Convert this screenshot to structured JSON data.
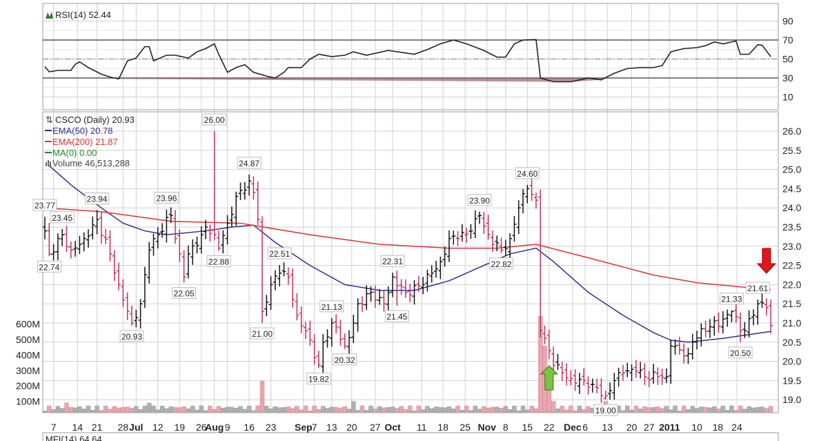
{
  "chart_data": {
    "type": "line",
    "symbol_title": "CSCO (Daily) 20.93",
    "rsi": {
      "label": "RSI(14) 52.44",
      "axis_ticks": [
        90,
        70,
        50,
        30,
        10
      ],
      "overbought": 70,
      "oversold": 30,
      "midline": 50,
      "points": [
        [
          0,
          42
        ],
        [
          1,
          36.5
        ],
        [
          3,
          38
        ],
        [
          6,
          38
        ],
        [
          7,
          44.5
        ],
        [
          8,
          47
        ],
        [
          10,
          41
        ],
        [
          13,
          34
        ],
        [
          15,
          31
        ],
        [
          17,
          29
        ],
        [
          19,
          48
        ],
        [
          21,
          51
        ],
        [
          23,
          63
        ],
        [
          24,
          63
        ],
        [
          25,
          48
        ],
        [
          26,
          50
        ],
        [
          28,
          54
        ],
        [
          30,
          54
        ],
        [
          33,
          51
        ],
        [
          35,
          57.6
        ],
        [
          37,
          61
        ],
        [
          39,
          66
        ],
        [
          40,
          55
        ],
        [
          42,
          36
        ],
        [
          44,
          41
        ],
        [
          46,
          44
        ],
        [
          48,
          36
        ],
        [
          51,
          32
        ],
        [
          53,
          30
        ],
        [
          55,
          36
        ],
        [
          56,
          41
        ],
        [
          59,
          41
        ],
        [
          61,
          50
        ],
        [
          63,
          55
        ],
        [
          66,
          52.5
        ],
        [
          69,
          54
        ],
        [
          71,
          57.6
        ],
        [
          74,
          54
        ],
        [
          79,
          59
        ],
        [
          85,
          55
        ],
        [
          88,
          60
        ],
        [
          91,
          66
        ],
        [
          94,
          70
        ],
        [
          97,
          66
        ],
        [
          101,
          59
        ],
        [
          104,
          52
        ],
        [
          106,
          52
        ],
        [
          108,
          66
        ],
        [
          110,
          70
        ],
        [
          113,
          70.5
        ],
        [
          114,
          30
        ],
        [
          117,
          26
        ],
        [
          121,
          26
        ],
        [
          125,
          30
        ],
        [
          128,
          28
        ],
        [
          131,
          35
        ],
        [
          134,
          40
        ],
        [
          137,
          41
        ],
        [
          140,
          41
        ],
        [
          142,
          43
        ],
        [
          144,
          57.6
        ],
        [
          147,
          61
        ],
        [
          150,
          62
        ],
        [
          152,
          64
        ],
        [
          154,
          68
        ],
        [
          156,
          66
        ],
        [
          159,
          69
        ],
        [
          160,
          55
        ],
        [
          162,
          55
        ],
        [
          164,
          65
        ],
        [
          165,
          64.5
        ],
        [
          167,
          52.4
        ]
      ]
    },
    "price": {
      "axis_ticks": [
        26.0,
        25.5,
        25.0,
        24.5,
        24.0,
        23.5,
        23.0,
        22.5,
        22.0,
        21.5,
        21.0,
        20.5,
        20.0,
        19.5,
        19.0
      ],
      "ylim": [
        18.7,
        26.2
      ],
      "closes": [
        [
          0,
          23.4
        ],
        [
          1,
          22.8
        ],
        [
          4,
          23.3
        ],
        [
          6,
          22.9
        ],
        [
          9,
          23.2
        ],
        [
          12,
          23.7
        ],
        [
          15,
          22.8
        ],
        [
          17,
          22.0
        ],
        [
          20,
          21.0
        ],
        [
          22,
          21.5
        ],
        [
          24,
          22.9
        ],
        [
          26,
          23.3
        ],
        [
          29,
          23.8
        ],
        [
          30,
          23.2
        ],
        [
          32,
          22.2
        ],
        [
          33,
          22.8
        ],
        [
          36,
          23.3
        ],
        [
          37,
          23.5
        ],
        [
          39,
          23.3
        ],
        [
          40,
          22.95
        ],
        [
          42,
          23.6
        ],
        [
          44,
          24.3
        ],
        [
          47,
          24.7
        ],
        [
          48,
          24.4
        ],
        [
          49,
          23.7
        ],
        [
          50,
          21.3
        ],
        [
          52,
          22.0
        ],
        [
          54,
          22.3
        ],
        [
          56,
          22.2
        ],
        [
          58,
          21.2
        ],
        [
          60,
          20.8
        ],
        [
          62,
          20.1
        ],
        [
          63,
          19.9
        ],
        [
          64,
          20.5
        ],
        [
          66,
          21.0
        ],
        [
          67,
          20.9
        ],
        [
          69,
          20.4
        ],
        [
          71,
          21.0
        ],
        [
          72,
          21.5
        ],
        [
          75,
          21.8
        ],
        [
          76,
          21.6
        ],
        [
          78,
          21.5
        ],
        [
          80,
          22.2
        ],
        [
          83,
          21.8
        ],
        [
          87,
          22.0
        ],
        [
          89,
          22.3
        ],
        [
          91,
          22.6
        ],
        [
          93,
          23.2
        ],
        [
          95,
          23.2
        ],
        [
          98,
          23.4
        ],
        [
          100,
          23.8
        ],
        [
          102,
          23.3
        ],
        [
          105,
          22.9
        ],
        [
          107,
          23.2
        ],
        [
          109,
          24.0
        ],
        [
          111,
          24.5
        ],
        [
          113,
          24.2
        ],
        [
          114,
          20.8
        ],
        [
          115,
          20.6
        ],
        [
          117,
          19.9
        ],
        [
          119,
          19.7
        ],
        [
          121,
          19.55
        ],
        [
          124,
          19.5
        ],
        [
          126,
          19.4
        ],
        [
          129,
          19.1
        ],
        [
          131,
          19.5
        ],
        [
          133,
          19.7
        ],
        [
          136,
          19.75
        ],
        [
          138,
          19.6
        ],
        [
          141,
          19.6
        ],
        [
          143,
          19.6
        ],
        [
          144,
          20.4
        ],
        [
          146,
          20.3
        ],
        [
          148,
          20.2
        ],
        [
          149,
          20.5
        ],
        [
          151,
          20.85
        ],
        [
          153,
          20.9
        ],
        [
          156,
          21.1
        ],
        [
          158,
          21.3
        ],
        [
          160,
          20.8
        ],
        [
          161,
          20.8
        ],
        [
          163,
          21.2
        ],
        [
          164,
          21.5
        ],
        [
          166,
          21.4
        ],
        [
          167,
          20.93
        ]
      ],
      "annotations": [
        {
          "day": 0,
          "value": "23.77",
          "kind": "high"
        },
        {
          "day": 1,
          "value": "22.74",
          "kind": "low"
        },
        {
          "day": 4,
          "value": "23.45",
          "kind": "high"
        },
        {
          "day": 12,
          "value": "23.94",
          "kind": "high"
        },
        {
          "day": 20,
          "value": "20.93",
          "kind": "low"
        },
        {
          "day": 28,
          "value": "23.96",
          "kind": "high"
        },
        {
          "day": 32,
          "value": "22.05",
          "kind": "low"
        },
        {
          "day": 39,
          "value": "26.00",
          "kind": "high"
        },
        {
          "day": 40,
          "value": "22.88",
          "kind": "low"
        },
        {
          "day": 47,
          "value": "24.87",
          "kind": "high"
        },
        {
          "day": 50,
          "value": "21.00",
          "kind": "low"
        },
        {
          "day": 54,
          "value": "22.51",
          "kind": "high"
        },
        {
          "day": 63,
          "value": "19.82",
          "kind": "low"
        },
        {
          "day": 66,
          "value": "21.13",
          "kind": "high"
        },
        {
          "day": 69,
          "value": "20.32",
          "kind": "low"
        },
        {
          "day": 80,
          "value": "22.31",
          "kind": "high"
        },
        {
          "day": 81,
          "value": "21.45",
          "kind": "low"
        },
        {
          "day": 100,
          "value": "23.90",
          "kind": "high"
        },
        {
          "day": 105,
          "value": "22.82",
          "kind": "low"
        },
        {
          "day": 111,
          "value": "24.60",
          "kind": "high"
        },
        {
          "day": 129,
          "value": "19.00",
          "kind": "low"
        },
        {
          "day": 158,
          "value": "21.33",
          "kind": "high"
        },
        {
          "day": 160,
          "value": "20.50",
          "kind": "low"
        },
        {
          "day": 164,
          "value": "21.61",
          "kind": "high"
        }
      ],
      "signals": [
        {
          "day": 116,
          "direction": "up",
          "color": "#7dc242"
        },
        {
          "day": 166,
          "direction": "down",
          "color": "#e3161b"
        }
      ]
    },
    "overlays": [
      {
        "name": "EMA(50)",
        "label": "EMA(50) 20.78",
        "color": "#2e2e8f",
        "points": [
          [
            1,
            25.1
          ],
          [
            6,
            24.6
          ],
          [
            13,
            24.0
          ],
          [
            18,
            23.6
          ],
          [
            23,
            23.4
          ],
          [
            28,
            23.3
          ],
          [
            37,
            23.4
          ],
          [
            43,
            23.5
          ],
          [
            48,
            23.55
          ],
          [
            53,
            23.1
          ],
          [
            61,
            22.5
          ],
          [
            69,
            22.0
          ],
          [
            77,
            21.85
          ],
          [
            85,
            21.85
          ],
          [
            93,
            22.1
          ],
          [
            101,
            22.5
          ],
          [
            107,
            22.8
          ],
          [
            113,
            22.95
          ],
          [
            117,
            22.6
          ],
          [
            125,
            21.8
          ],
          [
            133,
            21.2
          ],
          [
            140,
            20.75
          ],
          [
            144,
            20.55
          ],
          [
            148,
            20.5
          ],
          [
            156,
            20.6
          ],
          [
            167,
            20.78
          ]
        ]
      },
      {
        "name": "EMA(200)",
        "label": "EMA(200) 21.87",
        "color": "#e03030",
        "points": [
          [
            0,
            24.0
          ],
          [
            13,
            23.9
          ],
          [
            29,
            23.65
          ],
          [
            45,
            23.6
          ],
          [
            61,
            23.3
          ],
          [
            77,
            23.05
          ],
          [
            93,
            22.95
          ],
          [
            104,
            22.95
          ],
          [
            113,
            23.05
          ],
          [
            125,
            22.7
          ],
          [
            140,
            22.25
          ],
          [
            150,
            22.05
          ],
          [
            161,
            21.93
          ],
          [
            167,
            21.87
          ]
        ]
      },
      {
        "name": "MA(0)",
        "label": "MA(0) 0.00",
        "color": "#1a8a1a",
        "points": []
      }
    ],
    "volume": {
      "label": "Volume 46,513,288",
      "axis_ticks": [
        {
          "label": "600M",
          "value": 600
        },
        {
          "label": "500M",
          "value": 500
        },
        {
          "label": "400M",
          "value": 400
        },
        {
          "label": "300M",
          "value": 300
        },
        {
          "label": "200M",
          "value": 200
        },
        {
          "label": "100M",
          "value": 100
        }
      ],
      "typical_M": 55,
      "spikes_M": [
        [
          50,
          230
        ],
        [
          114,
          650
        ],
        [
          115,
          460
        ],
        [
          116,
          200
        ],
        [
          129,
          100
        ],
        [
          71,
          100
        ],
        [
          5,
          90
        ],
        [
          24,
          90
        ],
        [
          117,
          100
        ]
      ]
    },
    "x_ticks": [
      {
        "day": 2,
        "label": "7"
      },
      {
        "day": 7.5,
        "label": "14"
      },
      {
        "day": 12,
        "label": "21"
      },
      {
        "day": 18,
        "label": "28"
      },
      {
        "day": 21,
        "label": "Jul",
        "bold": true
      },
      {
        "day": 26,
        "label": "12"
      },
      {
        "day": 31,
        "label": "19"
      },
      {
        "day": 36,
        "label": "26"
      },
      {
        "day": 39,
        "label": "Aug",
        "bold": true
      },
      {
        "day": 42,
        "label": "9"
      },
      {
        "day": 47,
        "label": "16"
      },
      {
        "day": 52,
        "label": "23"
      },
      {
        "day": 59.5,
        "label": "Sep",
        "bold": true
      },
      {
        "day": 62,
        "label": "7"
      },
      {
        "day": 66,
        "label": "13"
      },
      {
        "day": 70.6,
        "label": "20"
      },
      {
        "day": 76,
        "label": "27"
      },
      {
        "day": 80,
        "label": "Oct",
        "bold": true
      },
      {
        "day": 86.7,
        "label": "11"
      },
      {
        "day": 91.6,
        "label": "18"
      },
      {
        "day": 96.7,
        "label": "25"
      },
      {
        "day": 101.7,
        "label": "Nov",
        "bold": true
      },
      {
        "day": 106,
        "label": "8"
      },
      {
        "day": 111,
        "label": "15"
      },
      {
        "day": 116,
        "label": "22"
      },
      {
        "day": 121.4,
        "label": "Dec",
        "bold": true
      },
      {
        "day": 124.3,
        "label": "6"
      },
      {
        "day": 129.4,
        "label": "13"
      },
      {
        "day": 135,
        "label": "20"
      },
      {
        "day": 139,
        "label": "27"
      },
      {
        "day": 143.7,
        "label": "2011",
        "bold": true
      },
      {
        "day": 150,
        "label": "10"
      },
      {
        "day": 154.8,
        "label": "18"
      },
      {
        "day": 159.2,
        "label": "24"
      }
    ],
    "lower_panel_label": "MFI(14) 64.64",
    "colors": {
      "up": "#111111",
      "down": "#c0305a",
      "vol_up": "#b0b0b0",
      "vol_down": "#e8a6b0",
      "grid": "#cfcfcf"
    }
  }
}
